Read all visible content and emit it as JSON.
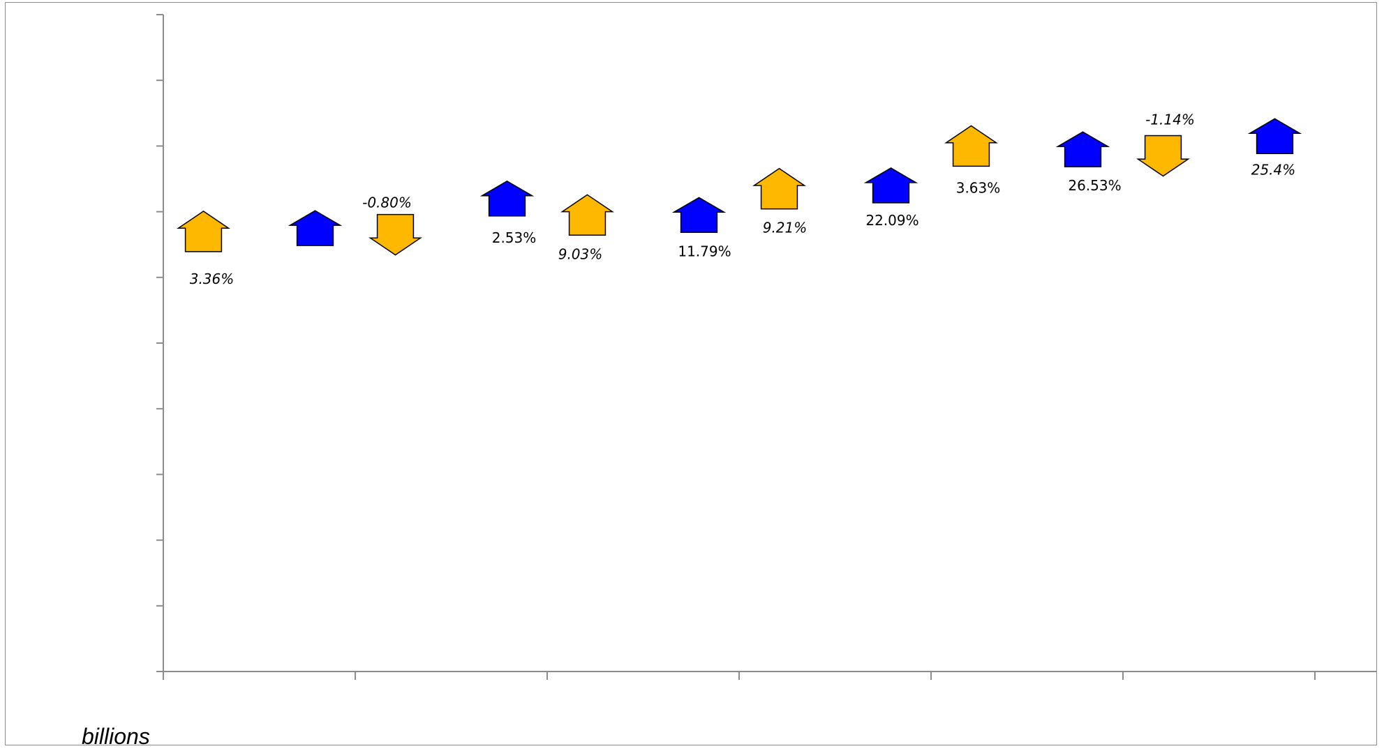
{
  "chart_data": {
    "type": "scatter",
    "unit_label": "billions",
    "categories": [
      "",
      "",
      "",
      "",
      "",
      ""
    ],
    "ylim": [
      0,
      10
    ],
    "grid": false,
    "colors": {
      "series_a": "#FFB800",
      "series_b": "#0000FF",
      "outline": "#000000"
    },
    "series": [
      {
        "name": "",
        "color": "#FFB800",
        "points": [
          {
            "y": 6.7,
            "direction": "up",
            "label": "3.36%",
            "label_style": "italic"
          },
          {
            "y": 6.65,
            "direction": "down",
            "label": "-0.80%",
            "label_style": "italic"
          },
          {
            "y": 6.95,
            "direction": "up",
            "label": "9.03%",
            "label_style": "italic"
          },
          {
            "y": 7.35,
            "direction": "up",
            "label": "9.21%",
            "label_style": "italic"
          },
          {
            "y": 8.0,
            "direction": "up",
            "label": "3.63%",
            "label_style": "normal"
          },
          {
            "y": 7.85,
            "direction": "down",
            "label": "-1.14%",
            "label_style": "italic"
          }
        ]
      },
      {
        "name": "",
        "color": "#0000FF",
        "points": [
          {
            "y": 6.75,
            "direction": "up",
            "label": "",
            "label_style": "normal"
          },
          {
            "y": 7.2,
            "direction": "up",
            "label": "2.53%",
            "label_style": "normal"
          },
          {
            "y": 6.95,
            "direction": "up",
            "label": "11.79%",
            "label_style": "normal"
          },
          {
            "y": 7.4,
            "direction": "up",
            "label": "22.09%",
            "label_style": "normal"
          },
          {
            "y": 7.95,
            "direction": "up",
            "label": "26.53%",
            "label_style": "normal"
          },
          {
            "y": 8.15,
            "direction": "up",
            "label": "25.4%",
            "label_style": "italic"
          }
        ]
      }
    ]
  }
}
